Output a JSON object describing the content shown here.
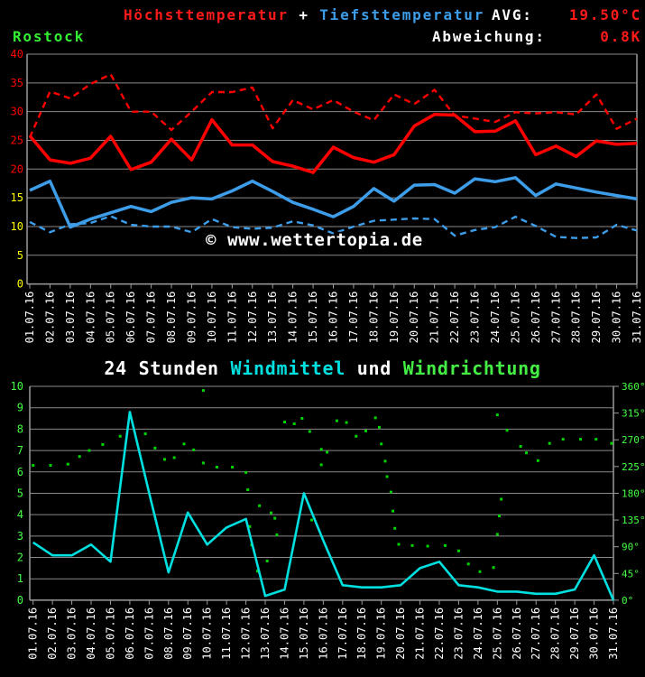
{
  "header": {
    "line1": {
      "hoechst": "Höchsttemperatur",
      "plus": " + ",
      "tiefst": "Tiefsttemperatur",
      "avg_label": "AVG:",
      "avg_value": "19.50°C"
    },
    "line2": {
      "station": "Rostock",
      "deviation_label": "Abweichung:",
      "deviation_value": "0.8K"
    }
  },
  "watermark": "© www.wettertopia.de",
  "wind_title": {
    "part1": "24 Stunden ",
    "part2": "Windmittel",
    "part3": " und ",
    "part4": "Windrichtung"
  },
  "colors": {
    "red": "#ff0000",
    "blue": "#3d9de8",
    "cyan": "#00e0e0",
    "dot_green": "#00d400",
    "axis_label_green": "#44ff44",
    "yellow": "#ffff00",
    "white": "#ffffff",
    "grid": "#8a8a8a",
    "axis": "#9a9a9a"
  },
  "chart_data": [
    {
      "type": "line",
      "title": "Höchsttemperatur + Tiefsttemperatur",
      "station": "Rostock",
      "avg_value": "19.50°C",
      "deviation_value": "0.8K",
      "ylim": [
        0,
        40
      ],
      "ytick_step": 5,
      "yticks_red": [
        40,
        35,
        30,
        25,
        20
      ],
      "yticks_yellow": [
        15,
        10,
        5,
        0
      ],
      "grid": true,
      "x_labels": [
        "01.07.16",
        "02.07.16",
        "03.07.16",
        "04.07.16",
        "05.07.16",
        "06.07.16",
        "07.07.16",
        "08.07.16",
        "09.07.16",
        "10.07.16",
        "11.07.16",
        "12.07.16",
        "13.07.16",
        "14.07.16",
        "15.07.16",
        "16.07.16",
        "17.07.16",
        "18.07.16",
        "19.07.16",
        "20.07.16",
        "21.07.16",
        "22.07.16",
        "23.07.16",
        "24.07.16",
        "25.07.16",
        "26.07.16",
        "27.07.16",
        "28.07.16",
        "29.07.16",
        "30.07.16",
        "31.07.16"
      ],
      "series": [
        {
          "name": "max-temp-dashed",
          "style": "dashed",
          "color": "#ff0000",
          "values": [
            25.5,
            33.5,
            32.3,
            34.8,
            36.5,
            30.0,
            30.0,
            26.8,
            30.0,
            33.4,
            33.4,
            34.2,
            27.1,
            32.0,
            30.4,
            32.0,
            30.0,
            28.5,
            33.0,
            31.3,
            33.8,
            29.3,
            28.8,
            28.2,
            29.9,
            29.7,
            29.9,
            29.5,
            33.0,
            27.0,
            28.8
          ]
        },
        {
          "name": "max-temp-solid",
          "style": "solid",
          "color": "#ff0000",
          "values": [
            25.8,
            21.6,
            21.0,
            21.9,
            25.7,
            19.9,
            21.2,
            25.2,
            21.6,
            28.6,
            24.2,
            24.2,
            21.3,
            20.5,
            19.4,
            23.8,
            22.0,
            21.2,
            22.5,
            27.5,
            29.5,
            29.4,
            26.5,
            26.6,
            28.4,
            22.5,
            24.0,
            22.2,
            24.9,
            24.3,
            24.5
          ]
        },
        {
          "name": "min-temp-dashed",
          "style": "dashed",
          "color": "#3d9de8",
          "values": [
            10.8,
            9.0,
            10.4,
            10.6,
            11.8,
            10.3,
            10.0,
            10.0,
            9.0,
            11.3,
            9.9,
            9.6,
            9.8,
            10.9,
            10.2,
            8.8,
            10.0,
            11.0,
            11.2,
            11.4,
            11.3,
            8.4,
            9.4,
            9.9,
            11.7,
            10.1,
            8.2,
            8.0,
            8.1,
            10.3,
            9.3
          ]
        },
        {
          "name": "min-temp-solid",
          "style": "solid",
          "color": "#3d9de8",
          "values": [
            16.3,
            17.9,
            9.9,
            11.3,
            12.4,
            13.5,
            12.6,
            14.2,
            15.0,
            14.8,
            16.2,
            17.9,
            16.1,
            14.2,
            13.0,
            11.7,
            13.5,
            16.6,
            14.4,
            17.2,
            17.3,
            15.8,
            18.3,
            17.8,
            18.5,
            15.4,
            17.4,
            16.7,
            16.0,
            15.4,
            14.8
          ]
        }
      ]
    },
    {
      "type": "line+scatter",
      "title": "24 Stunden Windmittel und Windrichtung",
      "left_axis": {
        "label": "Windmittel",
        "ylim": [
          0,
          10
        ],
        "tick_step": 1
      },
      "right_axis": {
        "label": "Windrichtung",
        "ylim": [
          0,
          360
        ],
        "tick_step": 45,
        "unit": "°"
      },
      "grid": true,
      "x_labels": [
        "01.07.16",
        "02.07.16",
        "03.07.16",
        "04.07.16",
        "05.07.16",
        "06.07.16",
        "07.07.16",
        "08.07.16",
        "09.07.16",
        "10.07.16",
        "11.07.16",
        "12.07.16",
        "13.07.16",
        "14.07.16",
        "15.07.16",
        "16.07.16",
        "17.07.16",
        "18.07.16",
        "19.07.16",
        "20.07.16",
        "21.07.16",
        "22.07.16",
        "23.07.16",
        "24.07.16",
        "25.07.16",
        "26.07.16",
        "27.07.16",
        "28.07.16",
        "29.07.16",
        "30.07.16",
        "31.07.16"
      ],
      "series": [
        {
          "name": "windmittel",
          "axis": "left",
          "kind": "line",
          "color": "#00e0e0",
          "values": [
            2.7,
            2.1,
            2.1,
            2.6,
            1.8,
            8.8,
            5.0,
            1.3,
            4.1,
            2.6,
            3.4,
            3.8,
            0.2,
            0.5,
            5.0,
            2.8,
            0.7,
            0.6,
            0.6,
            0.7,
            1.5,
            1.8,
            0.7,
            0.6,
            0.4,
            0.4,
            0.3,
            0.3,
            0.5,
            2.1,
            0.0
          ]
        },
        {
          "name": "windrichtung",
          "axis": "right",
          "kind": "scatter",
          "color": "#00d400",
          "points": [
            [
              1.0,
              227
            ],
            [
              1.9,
              227
            ],
            [
              2.8,
              229
            ],
            [
              3.4,
              242
            ],
            [
              3.9,
              252
            ],
            [
              4.6,
              262
            ],
            [
              5.5,
              276
            ],
            [
              6.8,
              280
            ],
            [
              7.3,
              256
            ],
            [
              7.8,
              237
            ],
            [
              8.3,
              240
            ],
            [
              8.8,
              263
            ],
            [
              9.3,
              253
            ],
            [
              9.8,
              353
            ],
            [
              9.8,
              231
            ],
            [
              10.5,
              224
            ],
            [
              11.3,
              224
            ],
            [
              12.0,
              215
            ],
            [
              12.1,
              186
            ],
            [
              12.2,
              124
            ],
            [
              12.3,
              93
            ],
            [
              12.6,
              49
            ],
            [
              12.7,
              159
            ],
            [
              13.1,
              66
            ],
            [
              13.3,
              147
            ],
            [
              13.5,
              138
            ],
            [
              13.6,
              110
            ],
            [
              14.0,
              300
            ],
            [
              14.5,
              297
            ],
            [
              14.9,
              306
            ],
            [
              15.3,
              284
            ],
            [
              15.4,
              135
            ],
            [
              15.9,
              254
            ],
            [
              15.9,
              228
            ],
            [
              16.2,
              249
            ],
            [
              16.7,
              302
            ],
            [
              17.2,
              299
            ],
            [
              17.7,
              276
            ],
            [
              18.2,
              285
            ],
            [
              18.7,
              307
            ],
            [
              18.9,
              291
            ],
            [
              19.0,
              263
            ],
            [
              19.2,
              234
            ],
            [
              19.3,
              208
            ],
            [
              19.5,
              182
            ],
            [
              19.6,
              150
            ],
            [
              19.7,
              121
            ],
            [
              19.9,
              94
            ],
            [
              20.6,
              92
            ],
            [
              21.4,
              91
            ],
            [
              22.3,
              92
            ],
            [
              23.0,
              83
            ],
            [
              23.5,
              61
            ],
            [
              24.1,
              48
            ],
            [
              24.8,
              55
            ],
            [
              25.0,
              111
            ],
            [
              25.0,
              312
            ],
            [
              25.1,
              142
            ],
            [
              25.2,
              170
            ],
            [
              25.5,
              286
            ],
            [
              26.2,
              259
            ],
            [
              26.5,
              248
            ],
            [
              27.1,
              235
            ],
            [
              27.7,
              264
            ],
            [
              28.4,
              271
            ],
            [
              29.3,
              271
            ],
            [
              30.1,
              271
            ],
            [
              30.9,
              264
            ]
          ]
        }
      ]
    }
  ]
}
